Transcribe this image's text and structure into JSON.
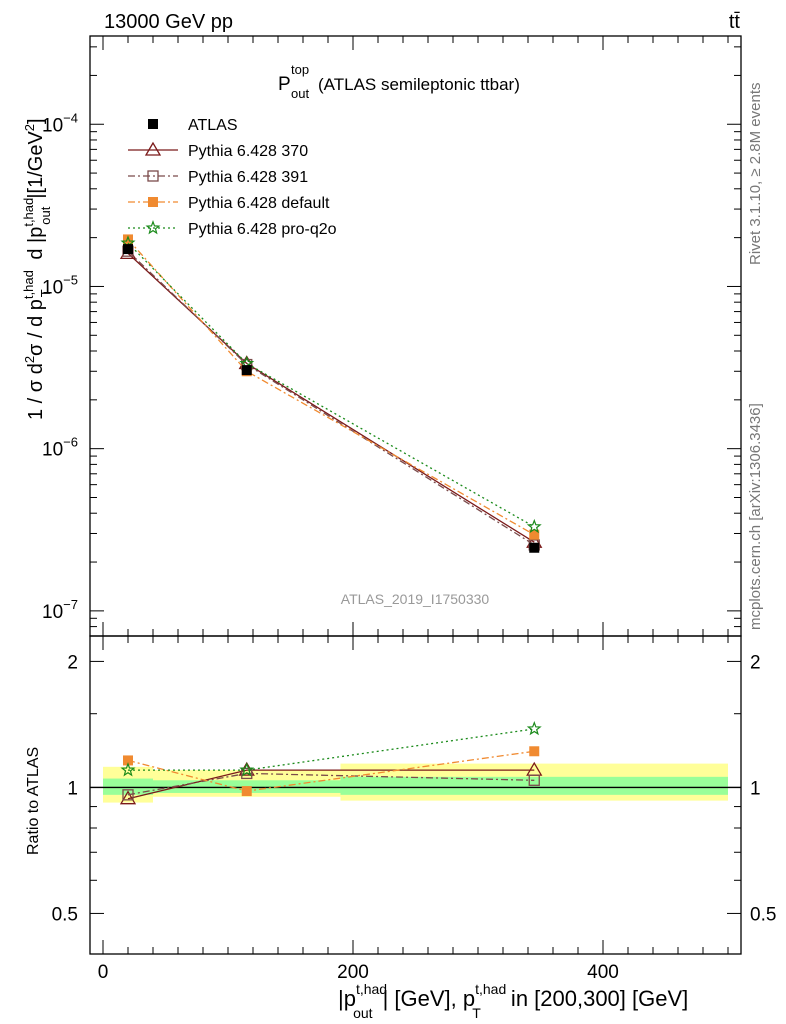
{
  "header": {
    "energy_label": "13000 GeV pp",
    "process_label": "tt̄"
  },
  "side_labels": {
    "rivet": "Rivet 3.1.10, ≥ 2.8M events",
    "mcplots": "mcplots.cern.ch [arXiv:1306.3436]"
  },
  "analysis_id": "ATLAS_2019_I1750330",
  "chart_data": [
    {
      "type": "line",
      "title": "P_out^top (ATLAS semileptonic ttbar)",
      "ylabel": "1 / σ d²σ / d p_T^{t,had} d |p_out^{t,had}| [1/GeV²]",
      "yscale": "log",
      "ylim": [
        7e-08,
        0.00035
      ],
      "xlim": [
        -10,
        510
      ],
      "ytick_labels": [
        "10^-7",
        "10^-6",
        "10^-5",
        "10^-4"
      ],
      "x": [
        20,
        115,
        345
      ],
      "x_bins": [
        [
          0,
          40
        ],
        [
          40,
          190
        ],
        [
          190,
          500
        ]
      ],
      "series": [
        {
          "name": "ATLAS",
          "color": "#000000",
          "marker": "square",
          "values": [
            1.7e-05,
            3.05e-06,
            2.45e-07
          ]
        },
        {
          "name": "Pythia 6.428 370",
          "color": "#7b1a1a",
          "marker": "triangle-open",
          "linestyle": "solid",
          "values": [
            1.6e-05,
            3.35e-06,
            2.65e-07
          ]
        },
        {
          "name": "Pythia 6.428 391",
          "color": "#7b4b4b",
          "marker": "square-open",
          "linestyle": "dashdot",
          "values": [
            1.65e-05,
            3.3e-06,
            2.55e-07
          ]
        },
        {
          "name": "Pythia 6.428 default",
          "color": "#f08a30",
          "marker": "square",
          "linestyle": "dashdot",
          "values": [
            1.95e-05,
            3e-06,
            2.95e-07
          ]
        },
        {
          "name": "Pythia 6.428 pro-q2o",
          "color": "#1a8a1a",
          "marker": "star",
          "linestyle": "dotted",
          "values": [
            1.85e-05,
            3.35e-06,
            3.3e-07
          ]
        }
      ]
    },
    {
      "type": "line",
      "ylabel": "Ratio to ATLAS",
      "xlabel": "|p_out^{t,had}| [GeV], p_T^{t,had} in [200,300] [GeV]",
      "ylim": [
        0.4,
        2.3
      ],
      "xlim": [
        -10,
        510
      ],
      "ytick_labels": [
        "0.5",
        "1",
        "2"
      ],
      "xtick_labels": [
        "0",
        "200",
        "400"
      ],
      "x": [
        20,
        115,
        345
      ],
      "bands": {
        "green": [
          [
            0.96,
            1.05
          ],
          [
            0.97,
            1.04
          ],
          [
            0.96,
            1.06
          ]
        ],
        "yellow": [
          [
            0.92,
            1.12
          ],
          [
            0.95,
            1.1
          ],
          [
            0.93,
            1.14
          ]
        ]
      },
      "series": [
        {
          "name": "Pythia 6.428 370",
          "values": [
            0.94,
            1.1,
            1.1
          ]
        },
        {
          "name": "Pythia 6.428 391",
          "values": [
            0.96,
            1.08,
            1.04
          ]
        },
        {
          "name": "Pythia 6.428 default",
          "values": [
            1.16,
            0.98,
            1.22
          ]
        },
        {
          "name": "Pythia 6.428 pro-q2o",
          "values": [
            1.1,
            1.1,
            1.38
          ]
        }
      ]
    }
  ]
}
